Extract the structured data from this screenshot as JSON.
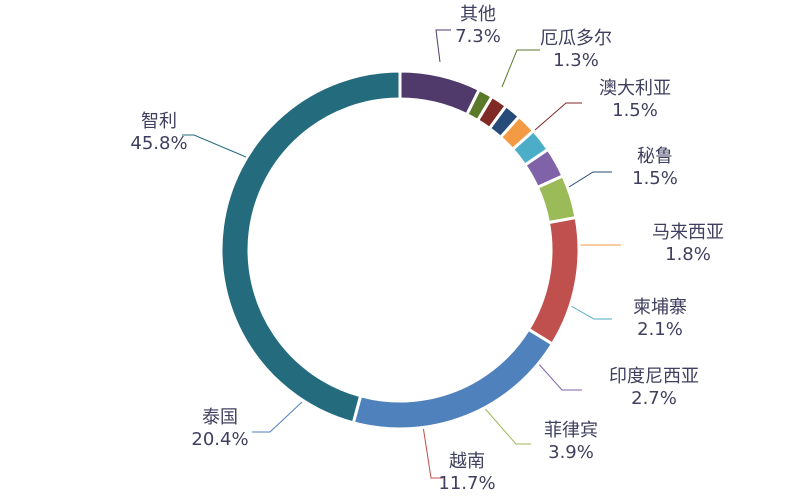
{
  "chart_data": {
    "type": "pie",
    "donut": true,
    "title": "",
    "legend": "none",
    "slices": [
      {
        "label": "其他",
        "value": 7.3,
        "value_label": "7.3%",
        "color": "#4f3a6b"
      },
      {
        "label": "厄瓜多尔",
        "value": 1.3,
        "value_label": "1.3%",
        "color": "#5a7a2a"
      },
      {
        "label": "澳大利亚",
        "value": 1.5,
        "value_label": "1.5%",
        "color": "#7f2a24"
      },
      {
        "label": "秘鲁",
        "value": 1.5,
        "value_label": "1.5%",
        "color": "#264a7a"
      },
      {
        "label": "马来西亚",
        "value": 1.8,
        "value_label": "1.8%",
        "color": "#f39a44"
      },
      {
        "label": "柬埔寨",
        "value": 2.1,
        "value_label": "2.1%",
        "color": "#4cadc9"
      },
      {
        "label": "印度尼西亚",
        "value": 2.7,
        "value_label": "2.7%",
        "color": "#7f62a8"
      },
      {
        "label": "菲律宾",
        "value": 3.9,
        "value_label": "3.9%",
        "color": "#9bbb59"
      },
      {
        "label": "越南",
        "value": 11.7,
        "value_label": "11.7%",
        "color": "#c0504d"
      },
      {
        "label": "泰国",
        "value": 20.4,
        "value_label": "20.4%",
        "color": "#4f81bd"
      },
      {
        "label": "智利",
        "value": 45.8,
        "value_label": "45.8%",
        "color": "#236b7d"
      }
    ]
  }
}
